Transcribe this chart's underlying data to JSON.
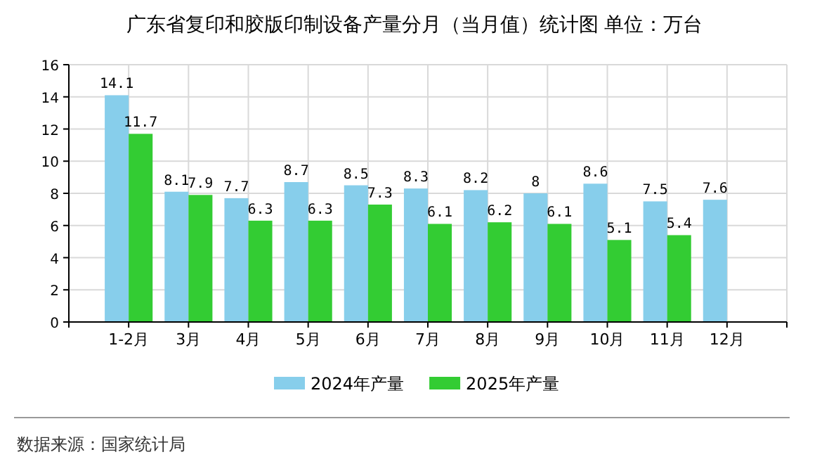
{
  "chart_data": {
    "type": "bar",
    "title": "广东省复印和胶版印制设备产量分月（当月值）统计图 单位：万台",
    "categories": [
      "1-2月",
      "3月",
      "4月",
      "5月",
      "6月",
      "7月",
      "8月",
      "9月",
      "10月",
      "11月",
      "12月"
    ],
    "series": [
      {
        "name": "2024年产量",
        "color": "#87ceeb",
        "values": [
          14.1,
          8.1,
          7.7,
          8.7,
          8.5,
          8.3,
          8.2,
          8,
          8.6,
          7.5,
          7.6
        ]
      },
      {
        "name": "2025年产量",
        "color": "#33cc33",
        "values": [
          11.7,
          7.9,
          6.3,
          6.3,
          7.3,
          6.1,
          6.2,
          6.1,
          5.1,
          5.4,
          null
        ]
      }
    ],
    "ylim": [
      0,
      16
    ],
    "yticks": [
      0,
      2,
      4,
      6,
      8,
      10,
      12,
      14,
      16
    ],
    "grid": true,
    "legend": "bottom",
    "data_labels": true,
    "annotations": [
      "数据来源：国家统计局"
    ]
  }
}
